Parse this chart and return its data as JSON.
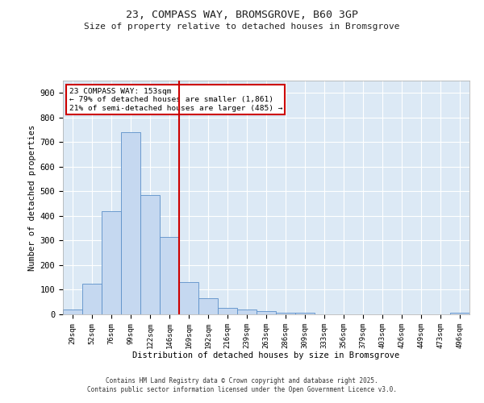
{
  "title1": "23, COMPASS WAY, BROMSGROVE, B60 3GP",
  "title2": "Size of property relative to detached houses in Bromsgrove",
  "xlabel": "Distribution of detached houses by size in Bromsgrove",
  "ylabel": "Number of detached properties",
  "bar_labels": [
    "29sqm",
    "52sqm",
    "76sqm",
    "99sqm",
    "122sqm",
    "146sqm",
    "169sqm",
    "192sqm",
    "216sqm",
    "239sqm",
    "263sqm",
    "286sqm",
    "309sqm",
    "333sqm",
    "356sqm",
    "379sqm",
    "403sqm",
    "426sqm",
    "449sqm",
    "473sqm",
    "496sqm"
  ],
  "bar_values": [
    20,
    125,
    420,
    740,
    485,
    315,
    130,
    65,
    25,
    20,
    12,
    8,
    5,
    0,
    0,
    0,
    0,
    0,
    0,
    0,
    5
  ],
  "bar_color": "#c5d8f0",
  "bar_edge_color": "#5b8fc9",
  "vline_x": 5.5,
  "vline_color": "#cc0000",
  "annotation_title": "23 COMPASS WAY: 153sqm",
  "annotation_line1": "← 79% of detached houses are smaller (1,861)",
  "annotation_line2": "21% of semi-detached houses are larger (485) →",
  "annotation_box_color": "#cc0000",
  "ylim": [
    0,
    950
  ],
  "yticks": [
    0,
    100,
    200,
    300,
    400,
    500,
    600,
    700,
    800,
    900
  ],
  "bg_color": "#dce9f5",
  "fig_color": "#ffffff",
  "grid_color": "#ffffff",
  "footer1": "Contains HM Land Registry data © Crown copyright and database right 2025.",
  "footer2": "Contains public sector information licensed under the Open Government Licence v3.0."
}
